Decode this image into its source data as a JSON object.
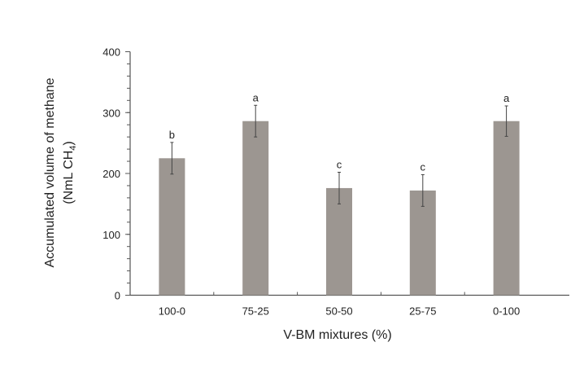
{
  "chart_data": {
    "type": "bar",
    "title": "",
    "xlabel": "V-BM mixtures (%)",
    "ylabel_line1": "Accumulated volume of methane",
    "ylabel_line2_prefix": "(NmL CH",
    "ylabel_line2_subscript": "4",
    "ylabel_line2_suffix": ")",
    "ylim": [
      0,
      400
    ],
    "yticks": [
      0,
      100,
      200,
      300,
      400
    ],
    "yminor_step": 20,
    "grid": false,
    "legend": "none",
    "bar_color": "#9c9691",
    "categories": [
      "100-0",
      "75-25",
      "50-50",
      "25-75",
      "0-100"
    ],
    "values": [
      225,
      286,
      176,
      172,
      286
    ],
    "errors": [
      26,
      26,
      26,
      26,
      25
    ],
    "significance_labels": [
      "b",
      "a",
      "c",
      "c",
      "a"
    ]
  }
}
